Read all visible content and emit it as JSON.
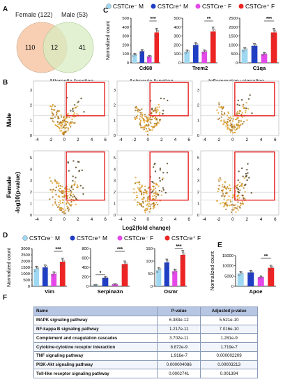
{
  "panels": {
    "a": "A",
    "b": "B",
    "c": "C",
    "d": "D",
    "e": "E",
    "f": "F"
  },
  "venn": {
    "left_label": "Female (122)",
    "right_label": "Male (53)",
    "left_only": "110",
    "overlap": "12",
    "right_only": "41",
    "left_color": "#f7c7a4",
    "right_color": "#d8ecc2"
  },
  "legend": {
    "items": [
      {
        "label": "CSTCre⁻ M",
        "color": "#9fd8f2"
      },
      {
        "label": "CSTCre⁺ M",
        "color": "#1f3ec4"
      },
      {
        "label": "CSTCre⁻ F",
        "color": "#e548e8"
      },
      {
        "label": "CSTCre⁺ F",
        "color": "#ec2424"
      }
    ]
  },
  "volcano": {
    "column_titles": [
      "Microglia function",
      "Astrocyte function",
      "Inflammatory signaling"
    ],
    "row_labels": [
      "Male",
      "Female"
    ],
    "ylabel": "-log10(p-value)",
    "xlabel": "Log2(fold change)",
    "x_ticks": [
      "-4",
      "-2",
      "0",
      "2",
      "4",
      "6"
    ],
    "male_y_ticks": [
      "0",
      "1",
      "2",
      "3"
    ],
    "female_y_ticks": [
      "0",
      "1",
      "2",
      "3",
      "4",
      "5"
    ]
  },
  "chart_data": [
    {
      "type": "bar",
      "panel": "C",
      "title": "Cd68",
      "ylabel": "Normalized count",
      "categories": [
        "CSTCre⁻ M",
        "CSTCre⁺ M",
        "CSTCre⁻ F",
        "CSTCre⁺ F"
      ],
      "values": [
        90,
        130,
        70,
        340
      ],
      "ylim": [
        0,
        500
      ],
      "yticks": [
        "0",
        "100",
        "200",
        "300",
        "400",
        "500"
      ],
      "sig": "***"
    },
    {
      "type": "bar",
      "panel": "C",
      "title": "Trem2",
      "categories": [
        "CSTCre⁻ M",
        "CSTCre⁺ M",
        "CSTCre⁻ F",
        "CSTCre⁺ F"
      ],
      "values": [
        125,
        200,
        125,
        350
      ],
      "ylim": [
        0,
        500
      ],
      "yticks": [
        "0",
        "100",
        "200",
        "300",
        "400",
        "500"
      ],
      "sig": "**"
    },
    {
      "type": "bar",
      "panel": "C",
      "title": "C1qa",
      "categories": [
        "CSTCre⁻ M",
        "CSTCre⁺ M",
        "CSTCre⁻ F",
        "CSTCre⁺ F"
      ],
      "values": [
        750,
        950,
        500,
        1700
      ],
      "ylim": [
        0,
        2500
      ],
      "yticks": [
        "0",
        "500",
        "1000",
        "1500",
        "2000",
        "2500"
      ],
      "sig": "***"
    },
    {
      "type": "bar",
      "panel": "D",
      "title": "Vim",
      "ylabel": "Normalized count",
      "categories": [
        "CSTCre⁻ M",
        "CSTCre⁺ M",
        "CSTCre⁻ F",
        "CSTCre⁺ F"
      ],
      "values": [
        1400,
        1500,
        1000,
        1950
      ],
      "ylim": [
        0,
        3000
      ],
      "yticks": [
        "0",
        "500",
        "1000",
        "1500",
        "2000",
        "2500",
        "3000"
      ],
      "sig": "***"
    },
    {
      "type": "bar",
      "panel": "D",
      "title": "Serpina3n",
      "categories": [
        "CSTCre⁻ M",
        "CSTCre⁺ M",
        "CSTCre⁻ F",
        "CSTCre⁺ F"
      ],
      "values": [
        25,
        180,
        40,
        470
      ],
      "ylim": [
        0,
        800
      ],
      "yticks": [
        "0",
        "200",
        "400",
        "600",
        "800"
      ],
      "sig_left": "*",
      "sig": "***"
    },
    {
      "type": "bar",
      "panel": "D",
      "title": "Osmr",
      "categories": [
        "CSTCre⁻ M",
        "CSTCre⁺ M",
        "CSTCre⁻ F",
        "CSTCre⁺ F"
      ],
      "values": [
        65,
        95,
        60,
        125
      ],
      "ylim": [
        0,
        150
      ],
      "yticks": [
        "0",
        "50",
        "100",
        "150"
      ],
      "sig": "***"
    },
    {
      "type": "bar",
      "panel": "E",
      "title": "Apoe",
      "ylabel": "Normalized count",
      "categories": [
        "CSTCre⁻ M",
        "CSTCre⁺ M",
        "CSTCre⁻ F",
        "CSTCre⁺ F"
      ],
      "values": [
        6300,
        6700,
        4400,
        9000
      ],
      "ylim": [
        0,
        15000
      ],
      "yticks": [
        "0",
        "5000",
        "10000",
        "15000"
      ],
      "sig": "**"
    }
  ],
  "table": {
    "headers": [
      "Name",
      "P-value",
      "Adjusted p-value"
    ],
    "rows": [
      [
        "MAPK signaling pathway",
        "6.383e-12",
        "5.521e-10"
      ],
      [
        "NF-kappa B signaling pathway",
        "1.217e-11",
        "7.016e-10"
      ],
      [
        "Complement and coagulation cascades",
        "3.702e-11",
        "1.281e-9"
      ],
      [
        "Cytokine-cytokine receptor interaction",
        "8.872e-9",
        "1.719e-7"
      ],
      [
        "TNF signaling pathway",
        "1.916e-7",
        "0.000002209"
      ],
      [
        "PI3K-Akt signaling pathway",
        "0.000004086",
        "0.00003213"
      ],
      [
        "Toll-like receptor signaling pathway",
        "0.0002741",
        "0.001394"
      ]
    ]
  }
}
